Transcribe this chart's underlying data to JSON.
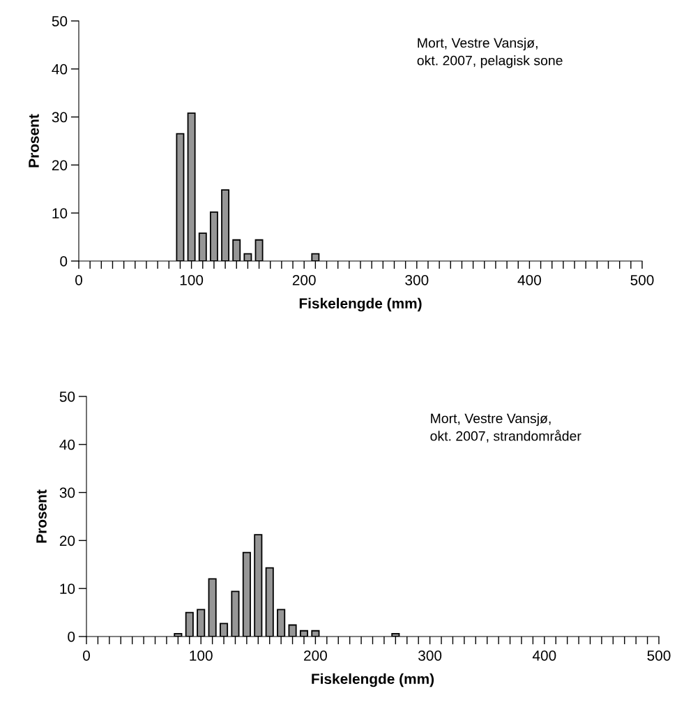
{
  "chart_data": [
    {
      "type": "bar",
      "x": [
        90,
        100,
        110,
        120,
        130,
        140,
        150,
        160,
        210
      ],
      "values": [
        26.5,
        30.8,
        5.8,
        10.2,
        14.8,
        4.4,
        1.5,
        4.4,
        1.5
      ],
      "color": "#969696",
      "xlabel": "Fiskelengde (mm)",
      "ylabel": "Prosent",
      "xlim": [
        0,
        500
      ],
      "ylim": [
        0,
        50
      ],
      "xticks": [
        0,
        {
          "value": 10,
          "label": null
        },
        {
          "value": 20,
          "label": null
        },
        {
          "value": 30,
          "label": null
        },
        {
          "value": 40,
          "label": null
        },
        {
          "value": 50,
          "label": null
        },
        {
          "value": 60,
          "label": null
        },
        {
          "value": 70,
          "label": null
        },
        {
          "value": 80,
          "label": null
        },
        {
          "value": 90,
          "label": null
        },
        100,
        {
          "value": 110,
          "label": null
        },
        {
          "value": 120,
          "label": null
        },
        {
          "value": 130,
          "label": null
        },
        {
          "value": 140,
          "label": null
        },
        {
          "value": 150,
          "label": null
        },
        {
          "value": 160,
          "label": null
        },
        {
          "value": 170,
          "label": null
        },
        {
          "value": 180,
          "label": null
        },
        {
          "value": 190,
          "label": null
        },
        200,
        {
          "value": 210,
          "label": null
        },
        {
          "value": 220,
          "label": null
        },
        {
          "value": 230,
          "label": null
        },
        {
          "value": 240,
          "label": null
        },
        {
          "value": 250,
          "label": null
        },
        {
          "value": 260,
          "label": null
        },
        {
          "value": 270,
          "label": null
        },
        {
          "value": 280,
          "label": null
        },
        {
          "value": 290,
          "label": null
        },
        300,
        {
          "value": 310,
          "label": null
        },
        {
          "value": 320,
          "label": null
        },
        {
          "value": 330,
          "label": null
        },
        {
          "value": 340,
          "label": null
        },
        {
          "value": 350,
          "label": null
        },
        {
          "value": 360,
          "label": null
        },
        {
          "value": 370,
          "label": null
        },
        {
          "value": 380,
          "label": null
        },
        {
          "value": 390,
          "label": null
        },
        400,
        {
          "value": 410,
          "label": null
        },
        {
          "value": 420,
          "label": null
        },
        {
          "value": 430,
          "label": null
        },
        {
          "value": 440,
          "label": null
        },
        {
          "value": 450,
          "label": null
        },
        {
          "value": 460,
          "label": null
        },
        {
          "value": 470,
          "label": null
        },
        {
          "value": 480,
          "label": null
        },
        {
          "value": 490,
          "label": null
        },
        500
      ],
      "yticks": [
        0,
        10,
        20,
        30,
        40,
        50
      ],
      "annotations": [
        "Mort, Vestre Vansjø,\nokt. 2007, pelagisk sone"
      ]
    },
    {
      "type": "bar",
      "x": [
        80,
        90,
        100,
        110,
        120,
        130,
        140,
        150,
        160,
        170,
        180,
        190,
        200,
        270
      ],
      "values": [
        0.6,
        5.0,
        5.6,
        12.0,
        2.7,
        9.4,
        17.5,
        21.2,
        14.3,
        5.6,
        2.4,
        1.2,
        1.2,
        0.6
      ],
      "color": "#969696",
      "xlabel": "Fiskelengde (mm)",
      "ylabel": "Prosent",
      "xlim": [
        0,
        500
      ],
      "ylim": [
        0,
        50
      ],
      "xticks": [
        0,
        {
          "value": 10,
          "label": null
        },
        {
          "value": 20,
          "label": null
        },
        {
          "value": 30,
          "label": null
        },
        {
          "value": 40,
          "label": null
        },
        {
          "value": 50,
          "label": null
        },
        {
          "value": 60,
          "label": null
        },
        {
          "value": 70,
          "label": null
        },
        {
          "value": 80,
          "label": null
        },
        {
          "value": 90,
          "label": null
        },
        100,
        {
          "value": 110,
          "label": null
        },
        {
          "value": 120,
          "label": null
        },
        {
          "value": 130,
          "label": null
        },
        {
          "value": 140,
          "label": null
        },
        {
          "value": 150,
          "label": null
        },
        {
          "value": 160,
          "label": null
        },
        {
          "value": 170,
          "label": null
        },
        {
          "value": 180,
          "label": null
        },
        {
          "value": 190,
          "label": null
        },
        200,
        {
          "value": 210,
          "label": null
        },
        {
          "value": 220,
          "label": null
        },
        {
          "value": 230,
          "label": null
        },
        {
          "value": 240,
          "label": null
        },
        {
          "value": 250,
          "label": null
        },
        {
          "value": 260,
          "label": null
        },
        {
          "value": 270,
          "label": null
        },
        {
          "value": 280,
          "label": null
        },
        {
          "value": 290,
          "label": null
        },
        300,
        {
          "value": 310,
          "label": null
        },
        {
          "value": 320,
          "label": null
        },
        {
          "value": 330,
          "label": null
        },
        {
          "value": 340,
          "label": null
        },
        {
          "value": 350,
          "label": null
        },
        {
          "value": 360,
          "label": null
        },
        {
          "value": 370,
          "label": null
        },
        {
          "value": 380,
          "label": null
        },
        {
          "value": 390,
          "label": null
        },
        400,
        {
          "value": 410,
          "label": null
        },
        {
          "value": 420,
          "label": null
        },
        {
          "value": 430,
          "label": null
        },
        {
          "value": 440,
          "label": null
        },
        {
          "value": 450,
          "label": null
        },
        {
          "value": 460,
          "label": null
        },
        {
          "value": 470,
          "label": null
        },
        {
          "value": 480,
          "label": null
        },
        {
          "value": 490,
          "label": null
        },
        500
      ],
      "yticks": [
        0,
        10,
        20,
        30,
        40,
        50
      ],
      "annotations": [
        "Mort, Vestre Vansjø,\nokt. 2007, strandområder"
      ]
    }
  ]
}
